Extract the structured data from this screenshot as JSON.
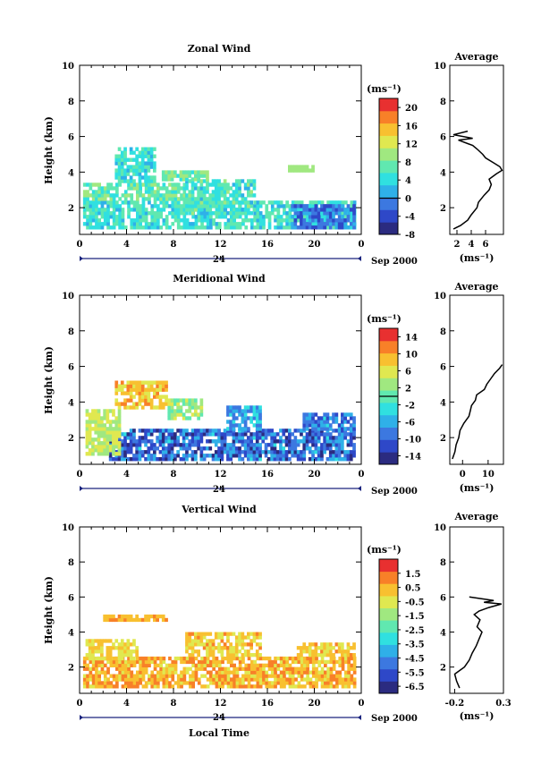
{
  "figure": {
    "date_label": "Sep 2000",
    "day_label": "24",
    "xlabel": "Local Time",
    "ylabel": "Height (km)",
    "colorbar_unit": "(ms⁻¹)",
    "avg_title": "Average",
    "avg_unit": "(ms⁻¹)"
  },
  "colors": {
    "scale": [
      "#2b2b80",
      "#2e48c8",
      "#3c78e0",
      "#2fb0e8",
      "#30e0e0",
      "#60e8b0",
      "#a0e880",
      "#e0e850",
      "#f8c030",
      "#f88028",
      "#e83030"
    ],
    "line": "#000000",
    "axis_accent": "#1a237e"
  },
  "chart_data": [
    {
      "type": "heatmap",
      "title": "Zonal Wind",
      "xlabel": "",
      "ylabel": "Height (km)",
      "xlim": [
        0,
        24
      ],
      "ylim": [
        0.5,
        10
      ],
      "x_ticks": [
        "0",
        "4",
        "8",
        "12",
        "16",
        "20",
        "0"
      ],
      "y_ticks": [
        "2",
        "4",
        "6",
        "8",
        "10"
      ],
      "colorbar": {
        "min": -8,
        "max": 22,
        "ticks": [
          "-8",
          "-4",
          "0",
          "4",
          "8",
          "12",
          "16",
          "20"
        ],
        "contour_at": 0
      },
      "regions": [
        {
          "x0": 0.3,
          "x1": 23.5,
          "y0": 0.8,
          "y1": 2.4,
          "v0": 2,
          "v1": 8
        },
        {
          "x0": 0.3,
          "x1": 9.0,
          "y0": 2.4,
          "y1": 3.4,
          "v0": 4,
          "v1": 10
        },
        {
          "x0": 9.0,
          "x1": 15.0,
          "y0": 1.6,
          "y1": 3.5,
          "v0": 2,
          "v1": 9
        },
        {
          "x0": 3.0,
          "x1": 6.5,
          "y0": 3.4,
          "y1": 5.3,
          "v0": 2,
          "v1": 8
        },
        {
          "x0": 7.0,
          "x1": 11.0,
          "y0": 3.5,
          "y1": 4.1,
          "v0": 5,
          "v1": 10
        },
        {
          "x0": 17.5,
          "x1": 20.0,
          "y0": 4.0,
          "y1": 4.4,
          "v0": 9,
          "v1": 11
        },
        {
          "x0": 18.0,
          "x1": 23.5,
          "y0": 0.8,
          "y1": 2.0,
          "v0": -5,
          "v1": 3
        }
      ],
      "average_profile": {
        "xlim": [
          1,
          8.5
        ],
        "x_ticks": [
          "2",
          "4",
          "6"
        ],
        "y_ticks": [
          "2",
          "4",
          "6",
          "8",
          "10"
        ],
        "heights": [
          0.8,
          1.0,
          1.3,
          1.6,
          2.0,
          2.3,
          2.7,
          3.0,
          3.3,
          3.6,
          3.9,
          4.1,
          4.3,
          4.5,
          4.8,
          5.0,
          5.3,
          5.5,
          5.6,
          5.8,
          5.9,
          6.1,
          6.3
        ],
        "values": [
          1.5,
          2.5,
          3.5,
          4.0,
          4.8,
          5.0,
          5.8,
          6.5,
          6.8,
          6.5,
          7.5,
          8.3,
          8.0,
          7.2,
          6.0,
          5.6,
          4.8,
          4.2,
          3.5,
          2.2,
          4.2,
          1.5,
          3.5
        ]
      }
    },
    {
      "type": "heatmap",
      "title": "Meridional Wind",
      "xlabel": "",
      "ylabel": "Height (km)",
      "xlim": [
        0,
        24
      ],
      "ylim": [
        0.5,
        10
      ],
      "x_ticks": [
        "0",
        "4",
        "8",
        "12",
        "16",
        "20",
        "0"
      ],
      "y_ticks": [
        "2",
        "4",
        "6",
        "8",
        "10"
      ],
      "colorbar": {
        "min": -16,
        "max": 16,
        "ticks": [
          "-14",
          "-10",
          "-6",
          "-2",
          "2",
          "6",
          "10",
          "14"
        ],
        "contour_at": 0
      },
      "regions": [
        {
          "x0": 2.5,
          "x1": 23.5,
          "y0": 0.7,
          "y1": 2.4,
          "v0": -15,
          "v1": -4
        },
        {
          "x0": 12.5,
          "x1": 15.5,
          "y0": 2.4,
          "y1": 3.8,
          "v0": -10,
          "v1": -2
        },
        {
          "x0": 0.5,
          "x1": 3.5,
          "y0": 1.0,
          "y1": 3.6,
          "v0": 2,
          "v1": 7
        },
        {
          "x0": 3.0,
          "x1": 7.5,
          "y0": 3.6,
          "y1": 5.2,
          "v0": 5,
          "v1": 11
        },
        {
          "x0": 7.5,
          "x1": 10.5,
          "y0": 3.0,
          "y1": 4.2,
          "v0": -1,
          "v1": 6
        },
        {
          "x0": 19.0,
          "x1": 23.5,
          "y0": 2.4,
          "y1": 3.4,
          "v0": -12,
          "v1": -4
        }
      ],
      "average_profile": {
        "xlim": [
          -5,
          16
        ],
        "x_ticks": [
          "0",
          "10"
        ],
        "y_ticks": [
          "2",
          "4",
          "6",
          "8",
          "10"
        ],
        "heights": [
          0.8,
          1.2,
          1.6,
          2.0,
          2.4,
          2.8,
          3.2,
          3.5,
          3.8,
          4.1,
          4.4,
          4.7,
          5.0,
          5.3,
          5.6,
          5.9,
          6.1
        ],
        "values": [
          -4,
          -3,
          -2.5,
          -1.5,
          -1,
          0.5,
          2.5,
          3,
          3.5,
          5,
          5.5,
          8.5,
          9.5,
          11,
          12.5,
          14.5,
          15.5
        ]
      }
    },
    {
      "type": "heatmap",
      "title": "Vertical Wind",
      "xlabel": "Local Time",
      "ylabel": "Height (km)",
      "xlim": [
        0,
        24
      ],
      "ylim": [
        0.5,
        10
      ],
      "x_ticks": [
        "0",
        "4",
        "8",
        "12",
        "16",
        "20",
        "0"
      ],
      "y_ticks": [
        "2",
        "4",
        "6",
        "8",
        "10"
      ],
      "colorbar": {
        "min": -7,
        "max": 2.5,
        "ticks": [
          "-6.5",
          "-5.5",
          "-4.5",
          "-3.5",
          "-2.5",
          "-1.5",
          "-0.5",
          "0.5",
          "1.5"
        ],
        "contour_at": null
      },
      "regions": [
        {
          "x0": 0.3,
          "x1": 23.5,
          "y0": 0.8,
          "y1": 2.6,
          "v0": -0.5,
          "v1": 1.5
        },
        {
          "x0": 9.0,
          "x1": 15.5,
          "y0": 2.6,
          "y1": 3.9,
          "v0": -0.8,
          "v1": 1.0
        },
        {
          "x0": 0.5,
          "x1": 5.0,
          "y0": 2.4,
          "y1": 3.5,
          "v0": -0.6,
          "v1": 0.4
        },
        {
          "x0": 2.0,
          "x1": 7.5,
          "y0": 4.6,
          "y1": 5.0,
          "v0": 0.2,
          "v1": 1.0
        },
        {
          "x0": 18.5,
          "x1": 23.5,
          "y0": 2.6,
          "y1": 3.3,
          "v0": -0.5,
          "v1": 0.8
        }
      ],
      "average_profile": {
        "xlim": [
          -0.25,
          0.3
        ],
        "x_ticks": [
          "-0.2",
          "0.3"
        ],
        "y_ticks": [
          "2",
          "4",
          "6",
          "8",
          "10"
        ],
        "heights": [
          0.8,
          1.2,
          1.6,
          2.0,
          2.4,
          2.8,
          3.2,
          3.6,
          4.0,
          4.3,
          4.7,
          5.0,
          5.2,
          5.4,
          5.6,
          5.7,
          5.8,
          6.0
        ],
        "values": [
          -0.15,
          -0.18,
          -0.2,
          -0.1,
          -0.05,
          -0.02,
          0.02,
          0.05,
          0.08,
          0.03,
          0.06,
          0.0,
          0.05,
          0.15,
          0.28,
          0.1,
          0.2,
          -0.05
        ]
      }
    }
  ]
}
